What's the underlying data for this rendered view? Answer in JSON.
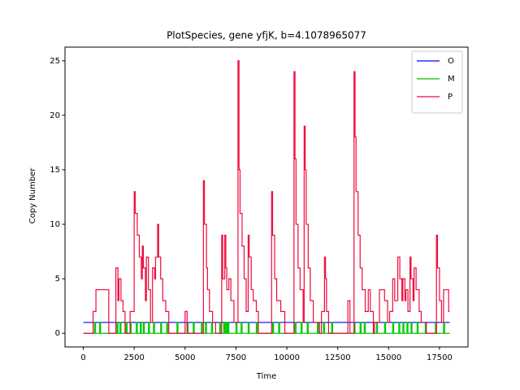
{
  "chart_data": {
    "type": "line",
    "drawstyle": "steps-post",
    "title": "PlotSpecies, gene yfjK, b=4.1078965077",
    "xlabel": "Time",
    "ylabel": "Copy Number",
    "xlim": [
      -900,
      18900
    ],
    "ylim": [
      -1.25,
      26.25
    ],
    "xticks": [
      0,
      2500,
      5000,
      7500,
      10000,
      12500,
      15000,
      17500
    ],
    "yticks": [
      0,
      5,
      10,
      15,
      20,
      25
    ],
    "legend": "upper right",
    "series": [
      {
        "name": "O",
        "color": "#0000ff",
        "x": [
          0,
          18000
        ],
        "values": [
          1,
          1
        ]
      },
      {
        "name": "M",
        "color": "#00c800",
        "x": [
          0,
          550,
          600,
          800,
          850,
          1650,
          1700,
          1800,
          1850,
          2100,
          2150,
          2300,
          2350,
          2600,
          2650,
          2800,
          2850,
          2950,
          3000,
          3200,
          3250,
          3450,
          3500,
          3800,
          3850,
          4100,
          4150,
          4600,
          4650,
          5100,
          5150,
          5400,
          5450,
          5800,
          5850,
          6000,
          6050,
          6300,
          6350,
          6700,
          6750,
          6900,
          6950,
          7000,
          7050,
          7100,
          7150,
          7500,
          7550,
          7750,
          7800,
          8100,
          8150,
          8500,
          8550,
          9300,
          9350,
          9600,
          9650,
          10400,
          10450,
          10700,
          10750,
          11000,
          11050,
          11500,
          11550,
          11800,
          11850,
          12200,
          12250,
          13300,
          13350,
          13600,
          13650,
          13800,
          13850,
          14400,
          14450,
          14800,
          14850,
          15200,
          15250,
          15500,
          15550,
          15700,
          15750,
          15900,
          15950,
          16100,
          16150,
          16400,
          16450,
          16800,
          16850,
          17300,
          17350,
          17700,
          17750,
          18000
        ],
        "values": [
          0,
          1,
          0,
          1,
          0,
          1,
          0,
          1,
          0,
          1,
          0,
          1,
          0,
          1,
          0,
          1,
          0,
          1,
          0,
          1,
          0,
          1,
          0,
          1,
          0,
          1,
          0,
          1,
          0,
          1,
          0,
          1,
          0,
          1,
          0,
          1,
          0,
          1,
          0,
          1,
          0,
          1,
          0,
          1,
          0,
          1,
          0,
          1,
          0,
          1,
          0,
          1,
          0,
          1,
          0,
          1,
          0,
          1,
          0,
          1,
          0,
          1,
          0,
          1,
          0,
          1,
          0,
          1,
          0,
          1,
          0,
          1,
          0,
          1,
          0,
          1,
          0,
          1,
          0,
          1,
          0,
          1,
          0,
          1,
          0,
          1,
          0,
          1,
          0,
          1,
          0,
          1,
          0,
          1,
          0,
          1,
          0,
          1,
          0,
          0
        ]
      },
      {
        "name": "P",
        "color": "#ee0a3c",
        "x": [
          0,
          480,
          620,
          1250,
          1600,
          1700,
          1750,
          1850,
          1950,
          2050,
          2300,
          2500,
          2550,
          2650,
          2750,
          2850,
          2900,
          2950,
          3050,
          3100,
          3200,
          3300,
          3400,
          3500,
          3550,
          3650,
          3700,
          3800,
          3900,
          4050,
          4200,
          5000,
          5100,
          5900,
          5950,
          6050,
          6100,
          6200,
          6350,
          6500,
          6800,
          6850,
          6950,
          7000,
          7050,
          7150,
          7250,
          7400,
          7600,
          7650,
          7700,
          7800,
          7900,
          8000,
          8100,
          8150,
          8250,
          8350,
          8500,
          8600,
          9250,
          9300,
          9400,
          9500,
          9700,
          9900,
          10350,
          10400,
          10450,
          10550,
          10650,
          10800,
          10850,
          10900,
          10950,
          11050,
          11150,
          11300,
          11600,
          11700,
          11850,
          11900,
          11950,
          12050,
          13000,
          13100,
          13300,
          13350,
          13400,
          13500,
          13600,
          13700,
          13850,
          14000,
          14100,
          14250,
          14300,
          14550,
          14800,
          14950,
          15050,
          15200,
          15300,
          15450,
          15550,
          15650,
          15700,
          15800,
          15850,
          15950,
          16050,
          16100,
          16200,
          16250,
          16350,
          16500,
          16600,
          16850,
          17350,
          17400,
          17500,
          17600,
          17700,
          17950,
          18000
        ],
        "values": [
          0,
          2,
          4,
          0,
          6,
          3,
          5,
          3,
          2,
          0,
          2,
          13,
          11,
          9,
          7,
          5,
          8,
          6,
          3,
          7,
          4,
          1,
          6,
          5,
          7,
          10,
          7,
          5,
          3,
          2,
          0,
          2,
          0,
          14,
          10,
          6,
          4,
          2,
          1,
          0,
          9,
          5,
          9,
          6,
          4,
          5,
          3,
          1,
          25,
          15,
          11,
          8,
          5,
          2,
          9,
          7,
          4,
          3,
          2,
          0,
          13,
          9,
          5,
          3,
          2,
          0,
          24,
          16,
          10,
          6,
          4,
          1,
          19,
          15,
          10,
          6,
          3,
          1,
          0,
          2,
          7,
          5,
          2,
          0,
          3,
          0,
          24,
          18,
          13,
          9,
          6,
          4,
          2,
          4,
          2,
          0,
          1,
          4,
          3,
          1,
          2,
          5,
          3,
          7,
          5,
          3,
          5,
          3,
          4,
          2,
          7,
          5,
          3,
          6,
          4,
          2,
          1,
          0,
          9,
          6,
          3,
          1,
          4,
          2,
          2
        ]
      }
    ]
  }
}
